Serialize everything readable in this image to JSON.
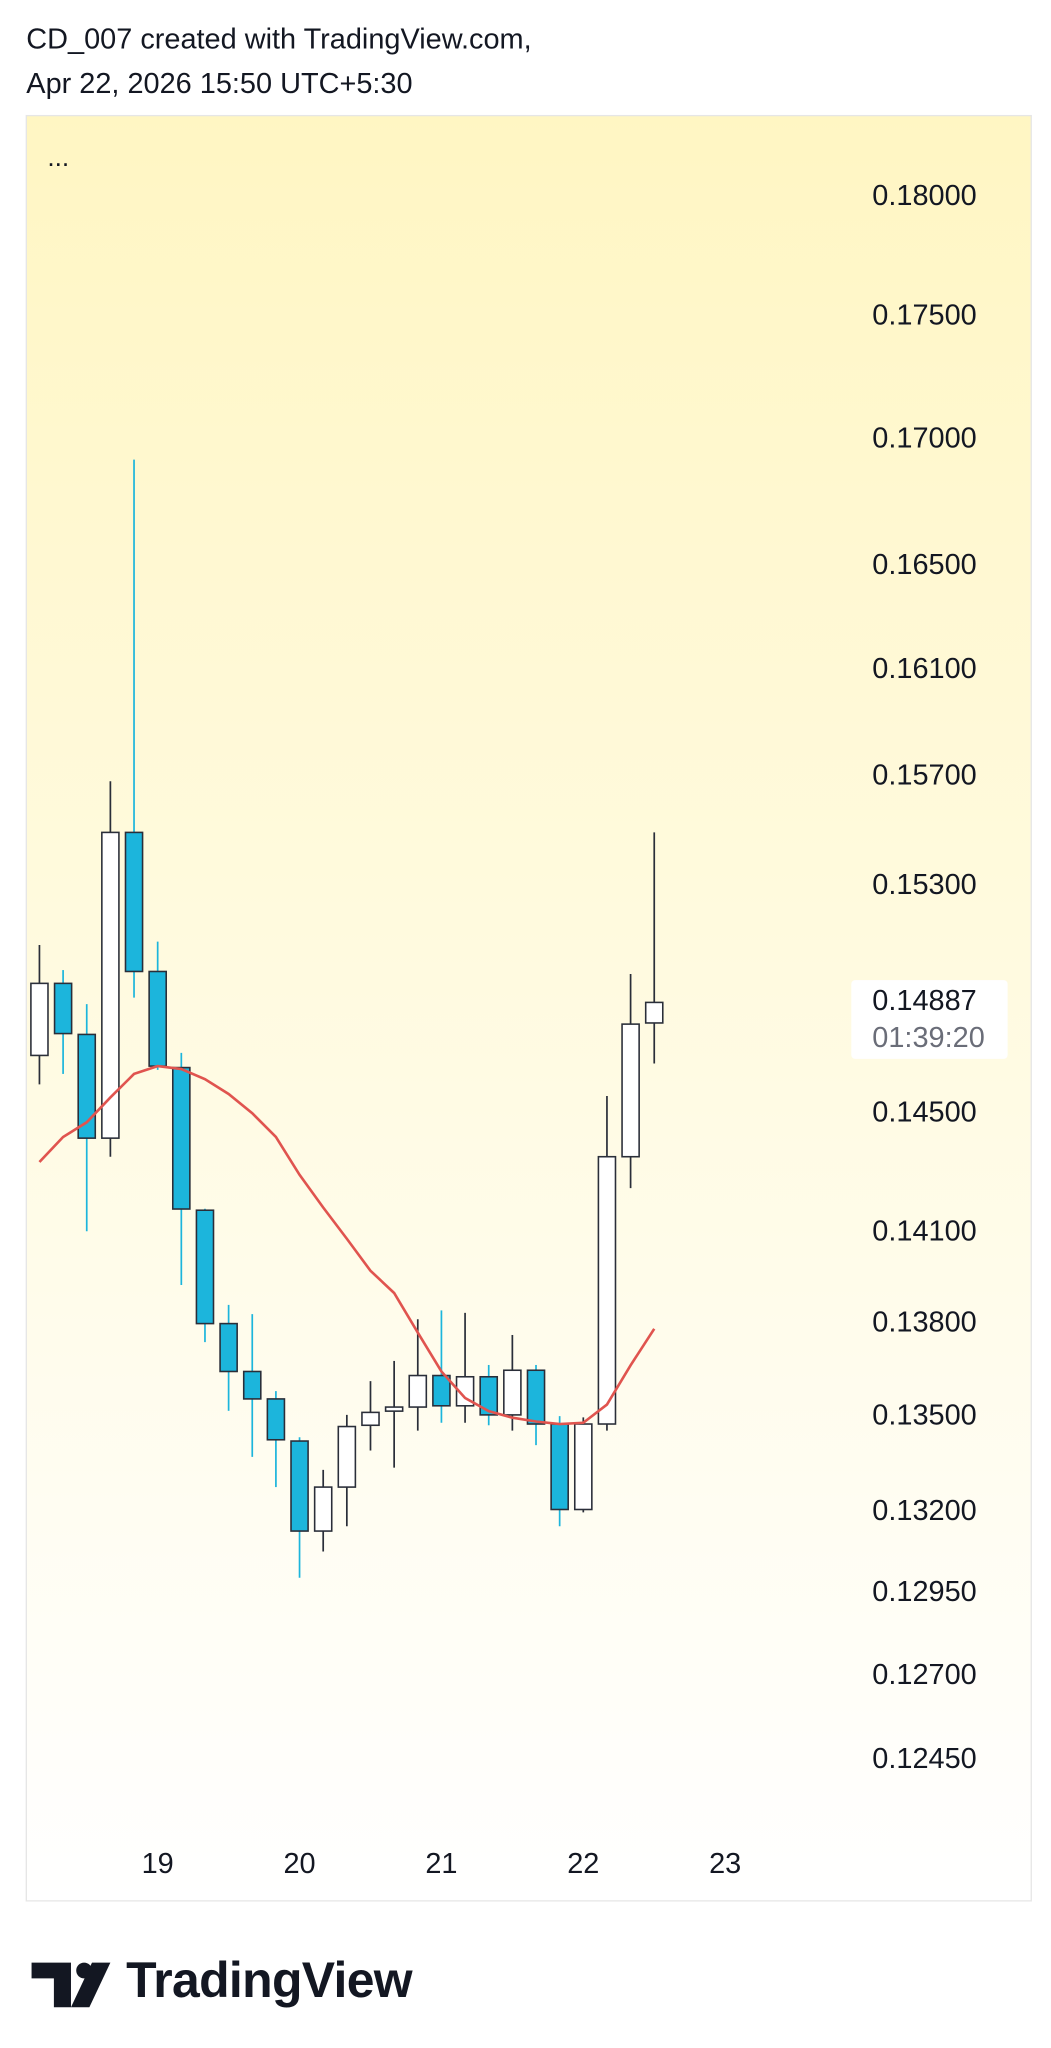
{
  "chart_data": {
    "type": "candlestick",
    "title": "CD_007 created with TradingView.com,",
    "subtitle": "Apr 22, 2026 15:50 UTC+5:30",
    "menu": "...",
    "brand": "TradingView",
    "categories": [
      null,
      null,
      null,
      null,
      null,
      "19",
      null,
      null,
      null,
      null,
      null,
      "20",
      null,
      null,
      null,
      null,
      null,
      "21",
      null,
      null,
      null,
      null,
      null,
      "22",
      null,
      null,
      null,
      null,
      null,
      "23"
    ],
    "open": [
      0.14702,
      0.14954,
      0.14775,
      0.14418,
      0.15496,
      0.14996,
      0.1466,
      0.14175,
      0.13801,
      0.13646,
      0.13558,
      0.13424,
      0.13142,
      0.13279,
      0.13474,
      0.13519,
      0.13532,
      0.13633,
      0.13536,
      0.13629,
      0.13507,
      0.1365,
      0.13478,
      0.13209,
      0.13478,
      0.14355,
      0.14815,
      null,
      null,
      null
    ],
    "high": [
      0.1509,
      0.15001,
      0.14881,
      0.15684,
      0.1692,
      0.15102,
      0.14711,
      0.1418,
      0.13862,
      0.13832,
      0.13583,
      0.13436,
      0.13333,
      0.13507,
      0.13615,
      0.1368,
      0.13815,
      0.13844,
      0.13836,
      0.13667,
      0.13764,
      0.13667,
      0.13503,
      0.13499,
      0.14562,
      0.14987,
      0.15496,
      null,
      null,
      null
    ],
    "low": [
      0.14602,
      0.14638,
      0.14105,
      0.14355,
      0.14904,
      0.14652,
      0.13927,
      0.13741,
      0.1352,
      0.13374,
      0.13279,
      0.12998,
      0.13079,
      0.13157,
      0.13394,
      0.1334,
      0.13457,
      0.13482,
      0.13482,
      0.13474,
      0.13457,
      0.13411,
      0.13157,
      0.132,
      0.13457,
      0.14249,
      0.14674,
      null,
      null,
      null
    ],
    "close": [
      0.14954,
      0.14778,
      0.14418,
      0.15496,
      0.14996,
      0.14665,
      0.14179,
      0.13801,
      0.13646,
      0.13558,
      0.13428,
      0.13142,
      0.13279,
      0.1347,
      0.13515,
      0.13532,
      0.13633,
      0.13536,
      0.13629,
      0.13507,
      0.1365,
      0.13478,
      0.13209,
      0.13478,
      0.14355,
      0.14811,
      0.14887,
      null,
      null,
      null
    ],
    "up_color": "#ffffff",
    "down_color": "#1cb5dc",
    "border_color": "#2a2e39",
    "ma": {
      "color": "#e0544f",
      "values": [
        0.14337,
        0.14422,
        0.14472,
        0.14557,
        0.14638,
        0.14665,
        0.14655,
        0.1462,
        0.14569,
        0.14503,
        0.14422,
        0.14294,
        0.14184,
        0.1408,
        0.13974,
        0.13901,
        0.13772,
        0.13646,
        0.13561,
        0.13519,
        0.13498,
        0.13486,
        0.13478,
        0.13482,
        0.1354,
        0.13666,
        0.13784,
        null,
        null,
        null
      ]
    },
    "log_scale": true,
    "ylim": [
      0.1224,
      0.1835
    ],
    "yticks": [
      {
        "value": 0.18,
        "label": "0.18000"
      },
      {
        "value": 0.175,
        "label": "0.17500"
      },
      {
        "value": 0.17,
        "label": "0.17000"
      },
      {
        "value": 0.165,
        "label": "0.16500"
      },
      {
        "value": 0.161,
        "label": "0.16100"
      },
      {
        "value": 0.157,
        "label": "0.15700"
      },
      {
        "value": 0.153,
        "label": "0.15300"
      },
      {
        "value": 0.145,
        "label": "0.14500"
      },
      {
        "value": 0.141,
        "label": "0.14100"
      },
      {
        "value": 0.138,
        "label": "0.13800"
      },
      {
        "value": 0.135,
        "label": "0.13500"
      },
      {
        "value": 0.132,
        "label": "0.13200"
      },
      {
        "value": 0.1295,
        "label": "0.12950"
      },
      {
        "value": 0.127,
        "label": "0.12700"
      },
      {
        "value": 0.1245,
        "label": "0.12450"
      }
    ],
    "last_price": 0.14887,
    "countdown": "01:39:20"
  }
}
